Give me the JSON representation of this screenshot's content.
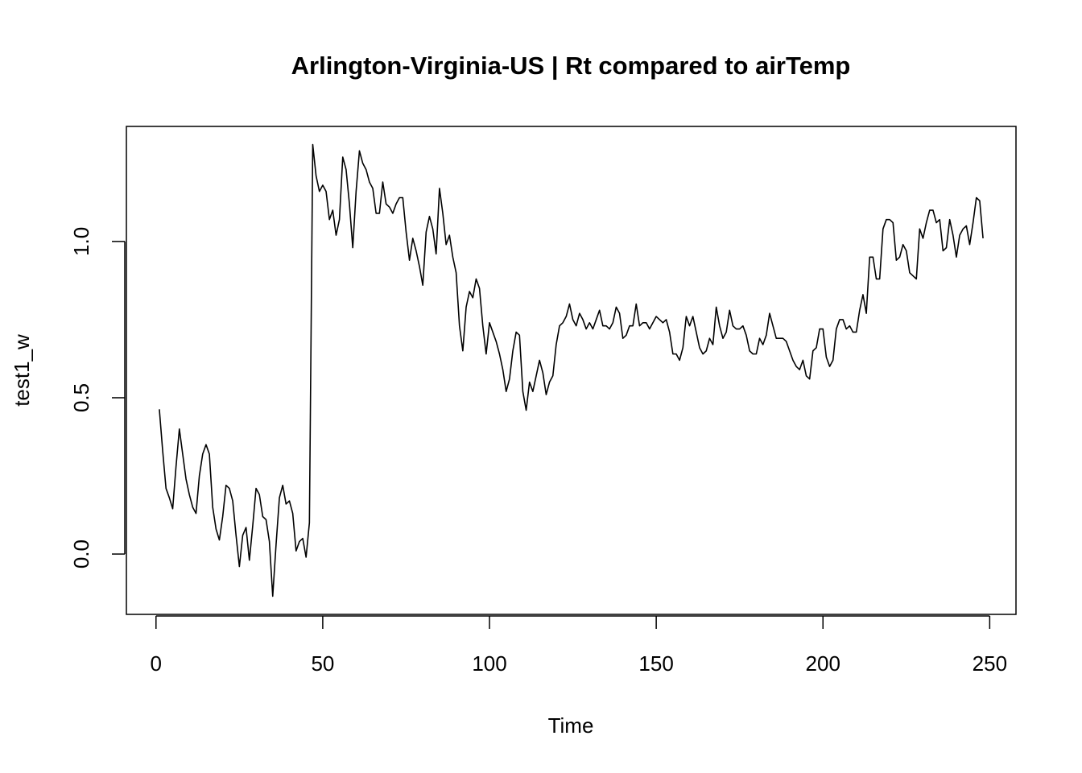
{
  "chart_data": {
    "type": "line",
    "title": "Arlington-Virginia-US | Rt compared to airTemp",
    "x_label": "Time",
    "y_label": "test1_w",
    "color": "#000000",
    "x": [
      1,
      2,
      3,
      4,
      5,
      6,
      7,
      8,
      9,
      10,
      11,
      12,
      13,
      14,
      15,
      16,
      17,
      18,
      19,
      20,
      21,
      22,
      23,
      24,
      25,
      26,
      27,
      28,
      29,
      30,
      31,
      32,
      33,
      34,
      35,
      36,
      37,
      38,
      39,
      40,
      41,
      42,
      43,
      44,
      45,
      46,
      47,
      48,
      49,
      50,
      51,
      52,
      53,
      54,
      55,
      56,
      57,
      58,
      59,
      60,
      61,
      62,
      63,
      64,
      65,
      66,
      67,
      68,
      69,
      70,
      71,
      72,
      73,
      74,
      75,
      76,
      77,
      78,
      79,
      80,
      81,
      82,
      83,
      84,
      85,
      86,
      87,
      88,
      89,
      90,
      91,
      92,
      93,
      94,
      95,
      96,
      97,
      98,
      99,
      100,
      101,
      102,
      103,
      104,
      105,
      106,
      107,
      108,
      109,
      110,
      111,
      112,
      113,
      114,
      115,
      116,
      117,
      118,
      119,
      120,
      121,
      122,
      123,
      124,
      125,
      126,
      127,
      128,
      129,
      130,
      131,
      132,
      133,
      134,
      135,
      136,
      137,
      138,
      139,
      140,
      141,
      142,
      143,
      144,
      145,
      146,
      147,
      148,
      149,
      150,
      151,
      152,
      153,
      154,
      155,
      156,
      157,
      158,
      159,
      160,
      161,
      162,
      163,
      164,
      165,
      166,
      167,
      168,
      169,
      170,
      171,
      172,
      173,
      174,
      175,
      176,
      177,
      178,
      179,
      180,
      181,
      182,
      183,
      184,
      185,
      186,
      187,
      188,
      189,
      190,
      191,
      192,
      193,
      194,
      195,
      196,
      197,
      198,
      199,
      200,
      201,
      202,
      203,
      204,
      205,
      206,
      207,
      208,
      209,
      210,
      211,
      212,
      213,
      214,
      215,
      216,
      217,
      218,
      219,
      220,
      221,
      222,
      223,
      224,
      225,
      226,
      227,
      228,
      229,
      230,
      231,
      232,
      233,
      234,
      235,
      236,
      237,
      238,
      239,
      240,
      241,
      242,
      243,
      244,
      245,
      246,
      247,
      248
    ],
    "values": [
      0.463,
      0.33,
      0.21,
      0.18,
      0.145,
      0.28,
      0.4,
      0.32,
      0.24,
      0.19,
      0.15,
      0.13,
      0.25,
      0.32,
      0.35,
      0.32,
      0.15,
      0.08,
      0.045,
      0.12,
      0.22,
      0.21,
      0.17,
      0.06,
      -0.04,
      0.06,
      0.085,
      -0.02,
      0.09,
      0.21,
      0.19,
      0.12,
      0.11,
      0.04,
      -0.135,
      0.03,
      0.18,
      0.22,
      0.16,
      0.17,
      0.13,
      0.01,
      0.04,
      0.05,
      -0.01,
      0.1,
      1.31,
      1.21,
      1.16,
      1.18,
      1.16,
      1.07,
      1.1,
      1.02,
      1.07,
      1.27,
      1.23,
      1.12,
      0.98,
      1.16,
      1.29,
      1.25,
      1.23,
      1.19,
      1.17,
      1.09,
      1.09,
      1.19,
      1.12,
      1.11,
      1.09,
      1.12,
      1.14,
      1.14,
      1.03,
      0.94,
      1.01,
      0.97,
      0.92,
      0.86,
      1.03,
      1.08,
      1.04,
      0.96,
      1.17,
      1.09,
      0.99,
      1.02,
      0.95,
      0.9,
      0.73,
      0.65,
      0.79,
      0.84,
      0.82,
      0.88,
      0.85,
      0.73,
      0.64,
      0.74,
      0.71,
      0.68,
      0.64,
      0.59,
      0.52,
      0.56,
      0.65,
      0.71,
      0.7,
      0.52,
      0.46,
      0.55,
      0.52,
      0.57,
      0.62,
      0.58,
      0.51,
      0.55,
      0.57,
      0.67,
      0.73,
      0.74,
      0.76,
      0.8,
      0.75,
      0.73,
      0.77,
      0.75,
      0.72,
      0.74,
      0.72,
      0.75,
      0.78,
      0.73,
      0.73,
      0.72,
      0.74,
      0.79,
      0.77,
      0.69,
      0.7,
      0.73,
      0.73,
      0.8,
      0.73,
      0.74,
      0.74,
      0.72,
      0.74,
      0.76,
      0.75,
      0.74,
      0.75,
      0.71,
      0.64,
      0.64,
      0.62,
      0.66,
      0.76,
      0.73,
      0.76,
      0.71,
      0.66,
      0.64,
      0.65,
      0.69,
      0.67,
      0.79,
      0.73,
      0.69,
      0.71,
      0.78,
      0.73,
      0.72,
      0.72,
      0.73,
      0.7,
      0.65,
      0.64,
      0.64,
      0.69,
      0.67,
      0.7,
      0.77,
      0.73,
      0.69,
      0.69,
      0.69,
      0.68,
      0.65,
      0.62,
      0.6,
      0.59,
      0.62,
      0.57,
      0.56,
      0.65,
      0.66,
      0.72,
      0.72,
      0.63,
      0.6,
      0.62,
      0.72,
      0.75,
      0.75,
      0.72,
      0.73,
      0.71,
      0.71,
      0.78,
      0.83,
      0.77,
      0.95,
      0.95,
      0.88,
      0.88,
      1.04,
      1.07,
      1.07,
      1.06,
      0.94,
      0.95,
      0.99,
      0.97,
      0.9,
      0.89,
      0.88,
      1.04,
      1.01,
      1.06,
      1.1,
      1.1,
      1.06,
      1.07,
      0.97,
      0.98,
      1.07,
      1.02,
      0.95,
      1.02,
      1.04,
      1.05,
      0.99,
      1.06,
      1.14,
      1.13,
      1.01
    ],
    "xlim": [
      -8.88,
      257.88
    ],
    "xticks": [
      0,
      50,
      100,
      150,
      200,
      250
    ],
    "ylim": [
      -0.193,
      1.368
    ],
    "yticks": [
      {
        "value": 0,
        "label": "0.0"
      },
      0.5,
      {
        "value": 1,
        "label": "1.0"
      }
    ]
  }
}
